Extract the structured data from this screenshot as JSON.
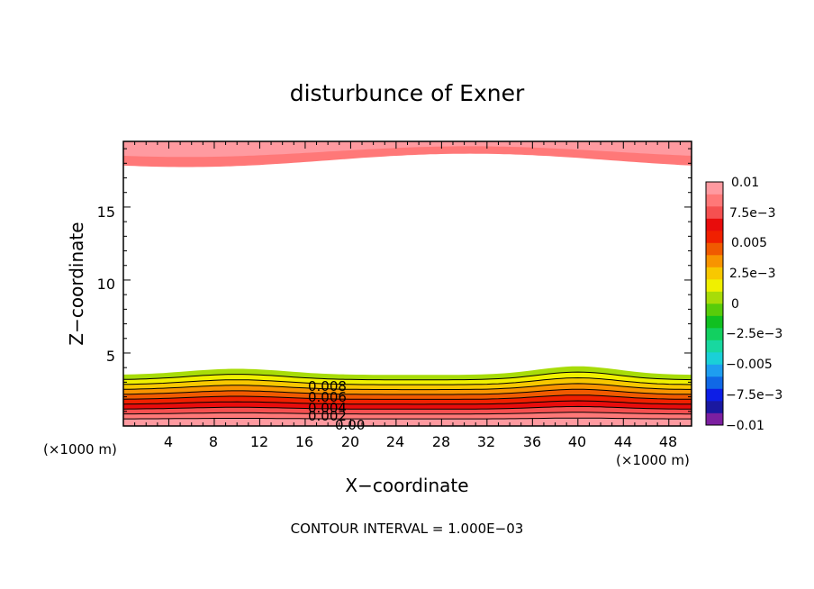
{
  "chart_data": {
    "type": "contour",
    "title": "disturbunce of Exner",
    "xlabel": "X−coordinate",
    "ylabel": "Z−coordinate",
    "x_unit_left": "(×1000 m)",
    "x_unit_right": "(×1000 m)",
    "xlim": [
      0,
      50
    ],
    "ylim": [
      0,
      19.5
    ],
    "xticks": [
      "4",
      "8",
      "12",
      "16",
      "20",
      "24",
      "28",
      "32",
      "36",
      "40",
      "44",
      "48"
    ],
    "yticks": [
      "5",
      "10",
      "15"
    ],
    "footer": "CONTOUR INTERVAL = 1.000E−03",
    "contour_labels": [
      "0.008",
      "0.006",
      "0.004",
      "0.002",
      "0.00"
    ],
    "colorbar": {
      "tick_labels": [
        "0.01",
        "7.5e−3",
        "0.005",
        "2.5e−3",
        "0",
        "−2.5e−3",
        "−0.005",
        "−7.5e−3",
        "−0.01"
      ],
      "level_colors": [
        "#7c1fa0",
        "#1a18a0",
        "#0d1ee6",
        "#1068e6",
        "#1e9ef0",
        "#1ad0d8",
        "#18d8a0",
        "#12d060",
        "#10c020",
        "#58cc0a",
        "#a8dc08",
        "#f0f000",
        "#f8c800",
        "#f89400",
        "#f05a00",
        "#f02000",
        "#e80c0c",
        "#f55050",
        "#ff7878",
        "#ff9aa0"
      ]
    },
    "bottom_layer_levels": [
      0.0,
      0.001,
      0.002,
      0.003,
      0.004,
      0.005,
      0.006,
      0.007,
      0.008,
      0.009
    ],
    "top_layer_levels": [
      0.008,
      0.009
    ]
  }
}
